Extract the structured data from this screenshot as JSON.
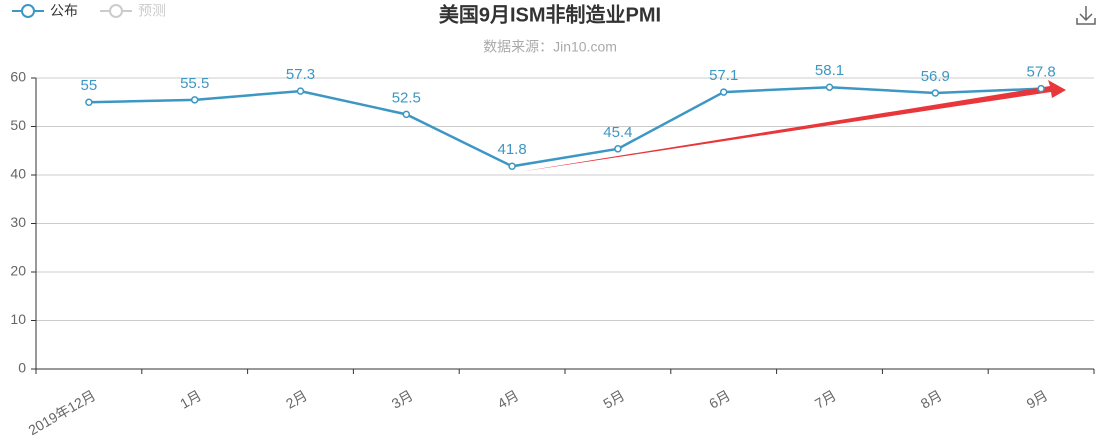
{
  "chart_data": {
    "type": "line",
    "title": "美国9月ISM非制造业PMI",
    "subtitle": "数据来源：Jin10.com",
    "categories": [
      "2019年12月",
      "1月",
      "2月",
      "3月",
      "4月",
      "5月",
      "6月",
      "7月",
      "8月",
      "9月"
    ],
    "series": [
      {
        "name": "公布",
        "color": "#3d97c4",
        "values": [
          55,
          55.5,
          57.3,
          52.5,
          41.8,
          45.4,
          57.1,
          58.1,
          56.9,
          57.8
        ]
      },
      {
        "name": "预测",
        "color": "#cccccc",
        "values": [
          null,
          null,
          null,
          null,
          null,
          null,
          null,
          null,
          null,
          null
        ]
      }
    ],
    "ylim": [
      0,
      60
    ],
    "yticks": [
      0,
      10,
      20,
      30,
      40,
      50,
      60
    ],
    "grid": true
  }
}
